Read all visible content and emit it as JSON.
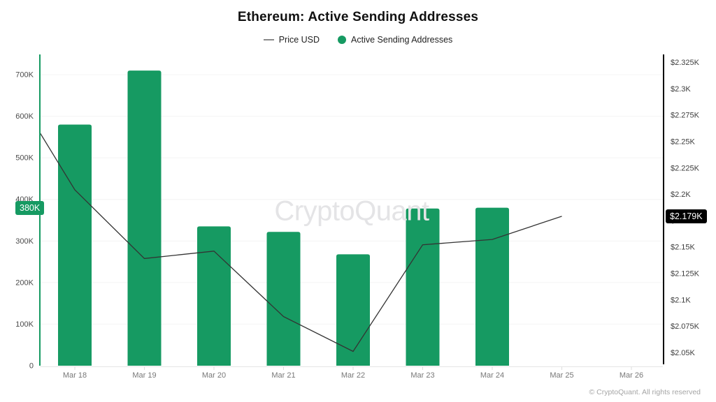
{
  "title": "Ethereum: Active Sending Addresses",
  "legend": [
    {
      "label": "Price USD",
      "type": "line",
      "color": "#8a8a8a"
    },
    {
      "label": "Active Sending Addresses",
      "type": "dot",
      "color": "#169A62"
    }
  ],
  "watermark": "CryptoQuant",
  "footer": "© CryptoQuant. All rights reserved",
  "chart_data": {
    "type": "bar+line",
    "title": "Ethereum: Active Sending Addresses",
    "categories": [
      "Mar 18",
      "Mar 19",
      "Mar 20",
      "Mar 21",
      "Mar 22",
      "Mar 23",
      "Mar 24",
      "Mar 25",
      "Mar 26"
    ],
    "grid": true,
    "legend_position": "top",
    "series": [
      {
        "name": "Active Sending Addresses",
        "type": "bar",
        "axis": "left",
        "color": "#169A62",
        "categories": [
          "Mar 18",
          "Mar 19",
          "Mar 20",
          "Mar 21",
          "Mar 22",
          "Mar 23",
          "Mar 24"
        ],
        "values": [
          580000,
          710000,
          335000,
          322000,
          268000,
          378000,
          380000
        ]
      },
      {
        "name": "Price USD",
        "type": "line",
        "axis": "right",
        "color": "#333333",
        "categories": [
          "Mar 18",
          "Mar 19",
          "Mar 20",
          "Mar 21",
          "Mar 22",
          "Mar 23",
          "Mar 24",
          "Mar 25"
        ],
        "values_usd": [
          2204,
          2139,
          2146,
          2084,
          2051,
          2152,
          2157,
          2179
        ],
        "clipped_lead_in": {
          "category": "Mar 17",
          "value_usd": 2312
        }
      }
    ],
    "left_axis": {
      "tick_labels": [
        "0",
        "100K",
        "200K",
        "300K",
        "400K",
        "500K",
        "600K",
        "700K"
      ],
      "tick_values": [
        0,
        100000,
        200000,
        300000,
        400000,
        500000,
        600000,
        700000
      ],
      "range": [
        0,
        750000
      ],
      "badge": {
        "label": "380K",
        "value": 380000,
        "color": "#169A62"
      }
    },
    "right_axis": {
      "tick_labels": [
        "$2.05K",
        "$2.075K",
        "$2.1K",
        "$2.125K",
        "$2.15K",
        "$2.175K",
        "$2.2K",
        "$2.225K",
        "$2.25K",
        "$2.275K",
        "$2.3K",
        "$2.325K"
      ],
      "tick_values": [
        2050,
        2075,
        2100,
        2125,
        2150,
        2175,
        2200,
        2225,
        2250,
        2275,
        2300,
        2325
      ],
      "range": [
        2037,
        2332
      ],
      "badge": {
        "label": "$2.179K",
        "value": 2179,
        "color": "#000000"
      }
    }
  }
}
